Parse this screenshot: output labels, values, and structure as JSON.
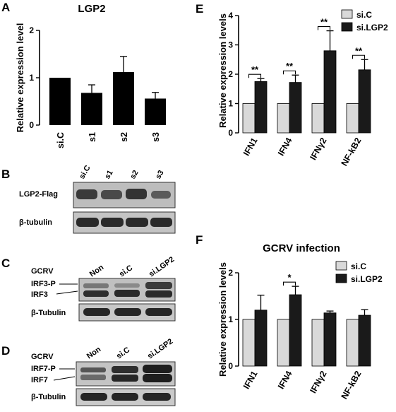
{
  "panels": {
    "A": {
      "letter": "A",
      "title": "LGP2",
      "ylabel": "Relative expression level"
    },
    "B": {
      "letter": "B",
      "lanes": [
        "si.C",
        "s1",
        "s2",
        "s3"
      ],
      "rows": [
        "LGP2-Flag",
        "β-tubulin"
      ]
    },
    "C": {
      "letter": "C",
      "condition": "GCRV",
      "lanes": [
        "Non",
        "si.C",
        "si.LGP2"
      ],
      "rows": [
        "IRF3-P",
        "IRF3",
        "β-Tubulin"
      ]
    },
    "D": {
      "letter": "D",
      "condition": "GCRV",
      "lanes": [
        "Non",
        "si.C",
        "si.LGP2"
      ],
      "rows": [
        "IRF7-P",
        "IRF7",
        "β-Tubulin"
      ]
    },
    "E": {
      "letter": "E",
      "ylabel": "Relative expression levels"
    },
    "F": {
      "letter": "F",
      "title": "GCRV infection",
      "ylabel": "Relative expression levels"
    }
  },
  "colors": {
    "control": "#d9d9d9",
    "treatment": "#1a1a1a",
    "bar": "#000000"
  },
  "chart_data": [
    {
      "id": "A",
      "type": "bar",
      "title": "LGP2",
      "categories": [
        "si.C",
        "s1",
        "s2",
        "s3"
      ],
      "values": [
        1.0,
        0.68,
        1.12,
        0.56
      ],
      "errors": [
        0,
        0.17,
        0.33,
        0.13
      ],
      "ylabel": "Relative expression level",
      "ylim": [
        0,
        2
      ],
      "yticks": [
        "0",
        "1",
        "2"
      ]
    },
    {
      "id": "E",
      "type": "bar",
      "categories": [
        "IFN1",
        "IFN4",
        "IFNγ2",
        "NF-kB2"
      ],
      "series": [
        {
          "name": "si.C",
          "values": [
            1.0,
            1.0,
            1.0,
            1.0
          ],
          "errors": [
            0,
            0,
            0,
            0
          ]
        },
        {
          "name": "si.LGP2",
          "values": [
            1.75,
            1.72,
            2.8,
            2.15
          ],
          "errors": [
            0.1,
            0.25,
            0.68,
            0.35
          ]
        }
      ],
      "significance": [
        "**",
        "**",
        "**",
        "**"
      ],
      "ylabel": "Relative expression levels",
      "ylim": [
        0,
        4
      ],
      "yticks": [
        "0",
        "1",
        "2",
        "3",
        "4"
      ],
      "legend": "top-right"
    },
    {
      "id": "F",
      "type": "bar",
      "title": "GCRV infection",
      "categories": [
        "IFN1",
        "IFN4",
        "IFNγ2",
        "NF-kB2"
      ],
      "series": [
        {
          "name": "si.C",
          "values": [
            1.0,
            1.0,
            1.0,
            1.0
          ],
          "errors": [
            0,
            0,
            0,
            0
          ]
        },
        {
          "name": "si.LGP2",
          "values": [
            1.2,
            1.53,
            1.14,
            1.09
          ],
          "errors": [
            0.32,
            0.18,
            0.04,
            0.12
          ]
        }
      ],
      "significance": [
        "",
        "*",
        "",
        ""
      ],
      "ylabel": "Relative expression levels",
      "ylim": [
        0,
        2
      ],
      "yticks": [
        "0",
        "1",
        "2"
      ],
      "legend": "top-right"
    }
  ]
}
